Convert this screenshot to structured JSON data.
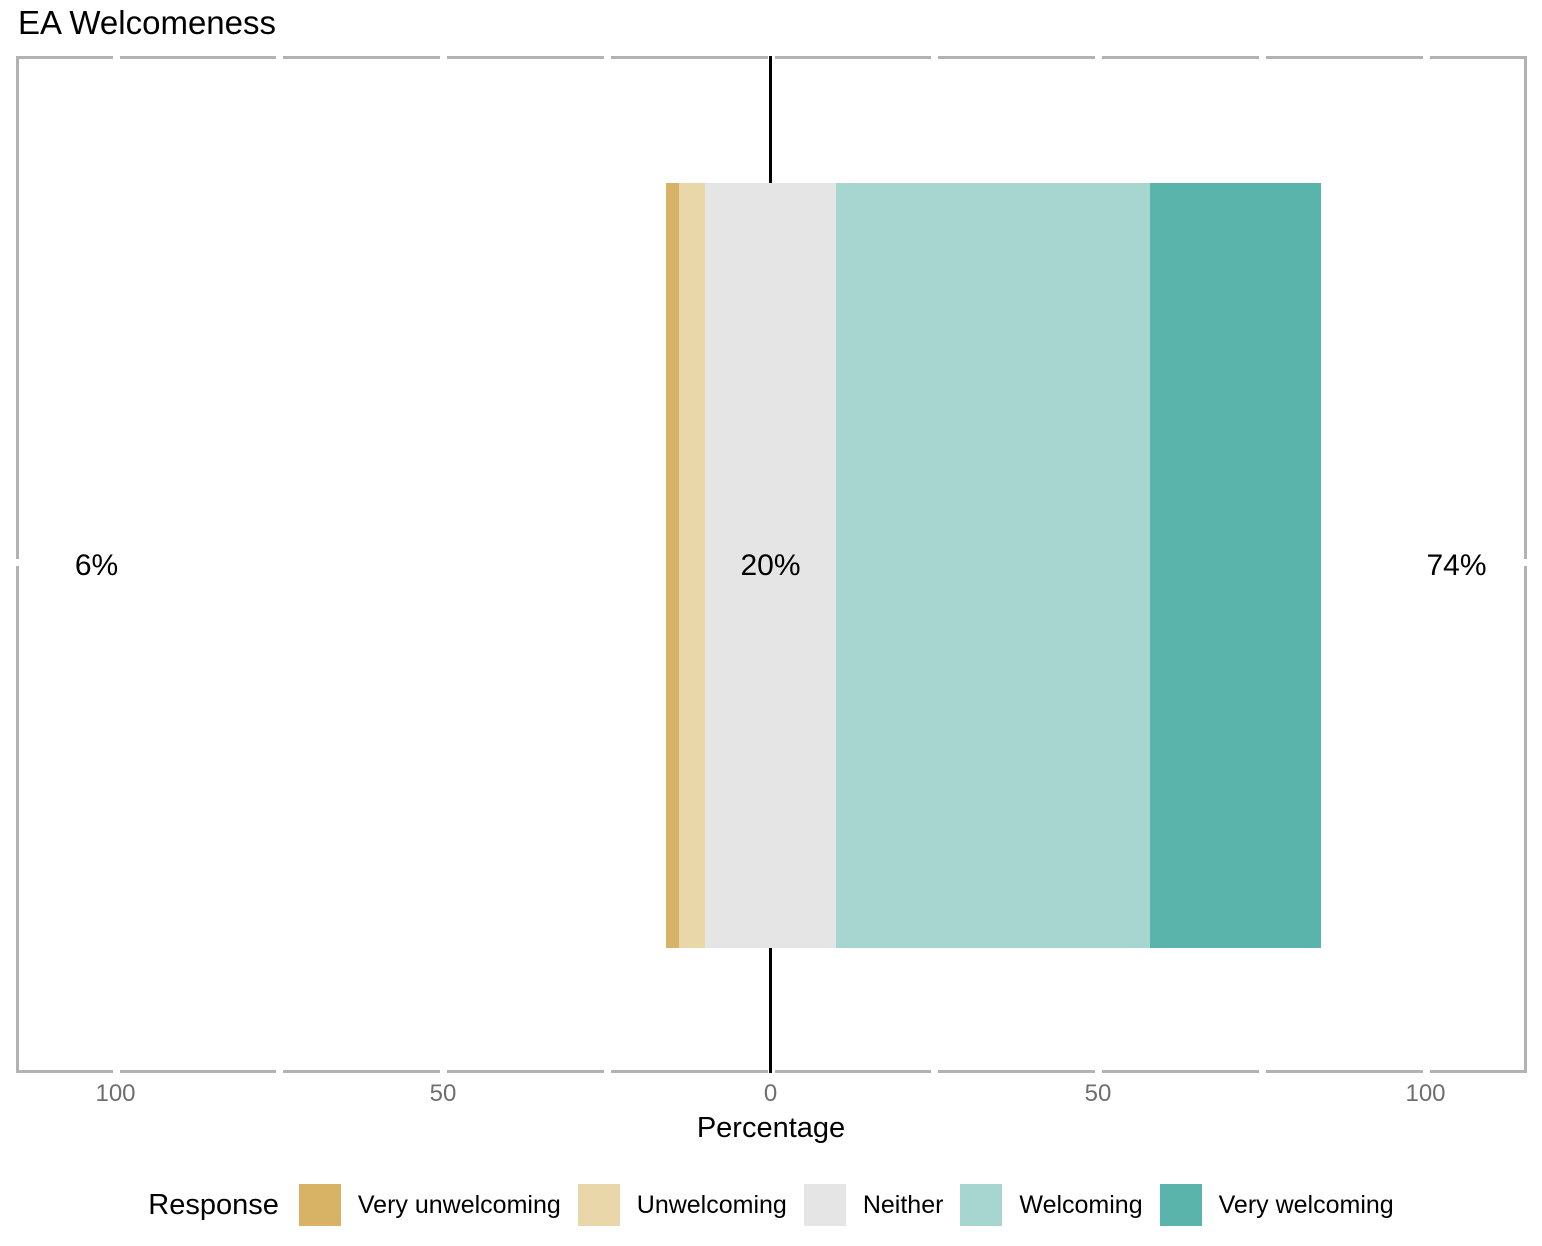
{
  "title": "EA Welcomeness",
  "axis": {
    "label": "Percentage",
    "tick_text_color": "#6f6f6f",
    "panel_border_color": "#b2b2b2",
    "zero_line_color": "#000000"
  },
  "totals": {
    "negative": "6%",
    "neutral": "20%",
    "positive": "74%"
  },
  "legend": {
    "title": "Response",
    "items": [
      {
        "label": "Very unwelcoming",
        "color": "#d8b365"
      },
      {
        "label": "Unwelcoming",
        "color": "#e9d7a9"
      },
      {
        "label": "Neither",
        "color": "#e5e5e5"
      },
      {
        "label": "Welcoming",
        "color": "#a6d6cf"
      },
      {
        "label": "Very welcoming",
        "color": "#5ab4ac"
      }
    ]
  },
  "chart_data": {
    "type": "bar",
    "subtype": "diverging-stacked-likert",
    "title": "EA Welcomeness",
    "categories": [
      "EA Welcomeness"
    ],
    "series": [
      {
        "name": "Very unwelcoming",
        "values": [
          2
        ],
        "color": "#d8b365"
      },
      {
        "name": "Unwelcoming",
        "values": [
          4
        ],
        "color": "#e9d7a9"
      },
      {
        "name": "Neither",
        "values": [
          20
        ],
        "color": "#e5e5e5"
      },
      {
        "name": "Welcoming",
        "values": [
          48
        ],
        "color": "#a6d6cf"
      },
      {
        "name": "Very welcoming",
        "values": [
          26
        ],
        "color": "#5ab4ac"
      }
    ],
    "baseline_rule": "Neither segment centered on zero; negatives stack left, positives right",
    "annotations": [
      {
        "text": "6%",
        "meaning": "total unwelcoming",
        "side": "left"
      },
      {
        "text": "20%",
        "meaning": "total neither",
        "side": "center"
      },
      {
        "text": "74%",
        "meaning": "total welcoming",
        "side": "right"
      }
    ],
    "xlabel": "Percentage",
    "xlim": [
      -115,
      115
    ],
    "xticks_all": [
      -100,
      -75,
      -50,
      -25,
      0,
      25,
      50,
      75,
      100
    ],
    "xticks_major": [
      {
        "pos": -100,
        "label": "100"
      },
      {
        "pos": -50,
        "label": "50"
      },
      {
        "pos": 0,
        "label": "0"
      },
      {
        "pos": 50,
        "label": "50"
      },
      {
        "pos": 100,
        "label": "100"
      }
    ],
    "legend_position": "bottom",
    "grid": false
  }
}
